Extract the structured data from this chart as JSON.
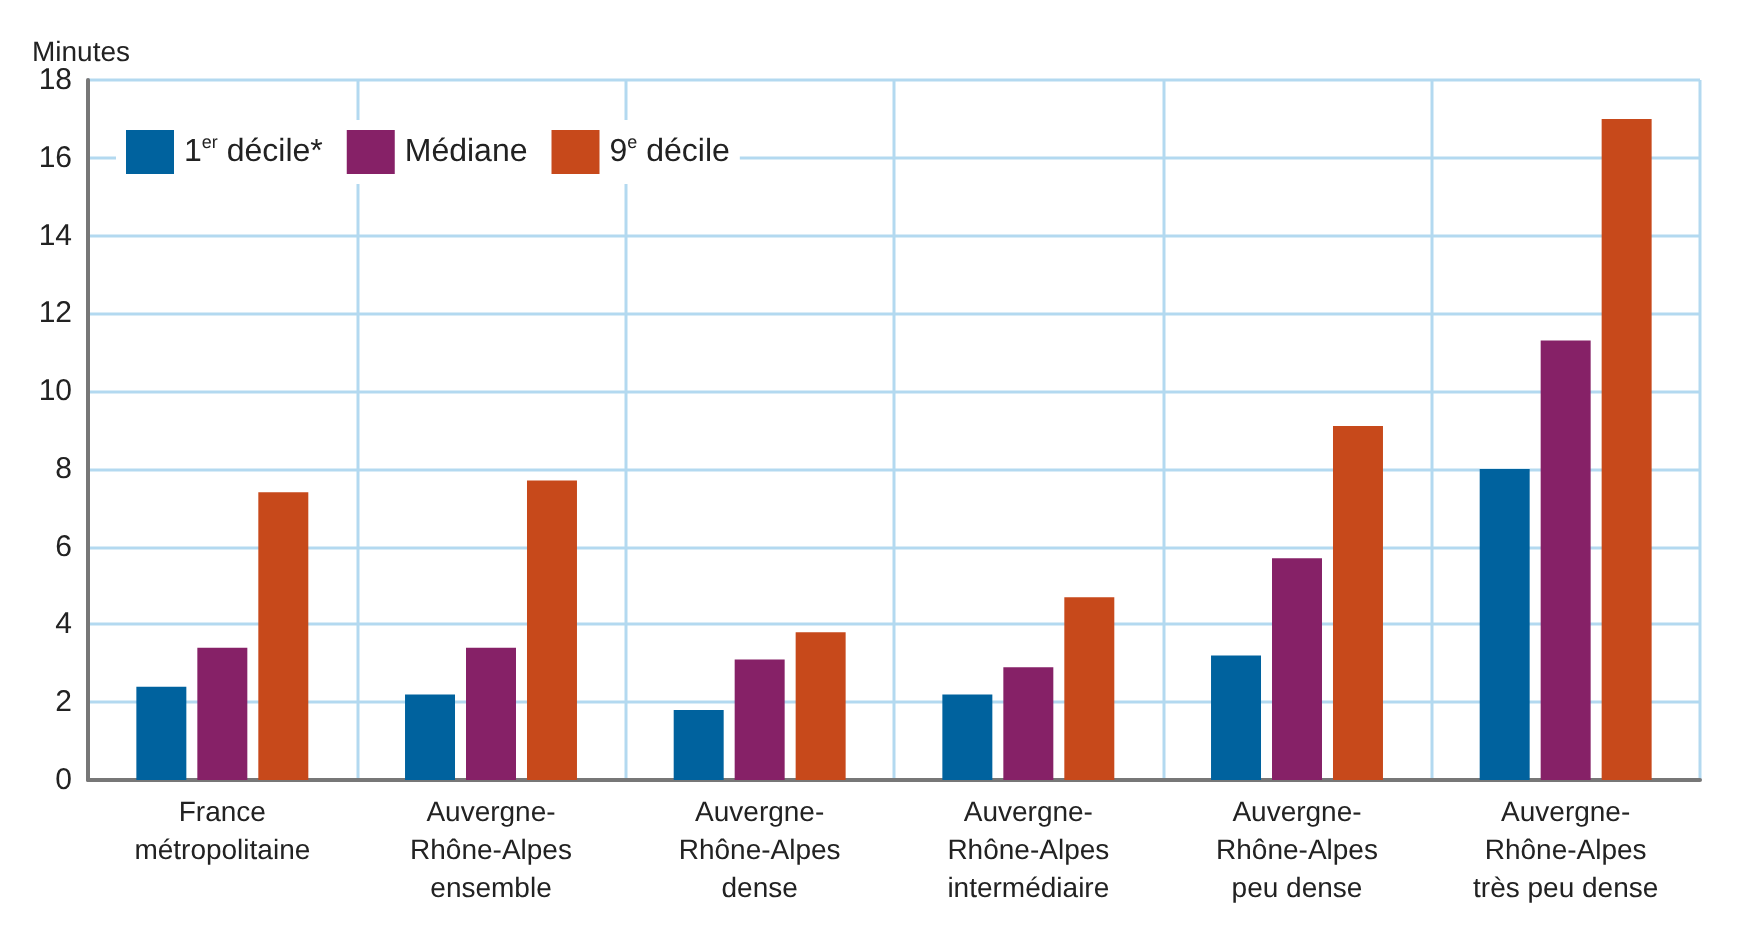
{
  "chart_data": {
    "type": "bar",
    "ylabel": "Minutes",
    "categories": [
      "France\nmétropolitaine",
      "Auvergne-\nRhône-Alpes\nensemble",
      "Auvergne-\nRhône-Alpes\ndense",
      "Auvergne-\nRhône-Alpes\nintermédiaire",
      "Auvergne-\nRhône-Alpes\npeu dense",
      "Auvergne-\nRhône-Alpes\ntrès peu dense"
    ],
    "series": [
      {
        "name": "1$^{er}$ décile*",
        "color": "#00629e",
        "values": [
          2.4,
          2.2,
          1.8,
          2.2,
          3.2,
          8.0
        ]
      },
      {
        "name": "Médiane",
        "color": "#862167",
        "values": [
          3.4,
          3.4,
          3.1,
          2.9,
          5.7,
          11.3
        ]
      },
      {
        "name": "9$^{e}$ décile",
        "color": "#c7491b",
        "values": [
          7.4,
          7.7,
          3.8,
          4.7,
          9.1,
          17.0
        ]
      }
    ],
    "ylim": [
      0,
      18
    ],
    "yticks": [
      0,
      2,
      4,
      6,
      8,
      10,
      12,
      14,
      16,
      18
    ],
    "grid": true,
    "legend": "top left"
  }
}
